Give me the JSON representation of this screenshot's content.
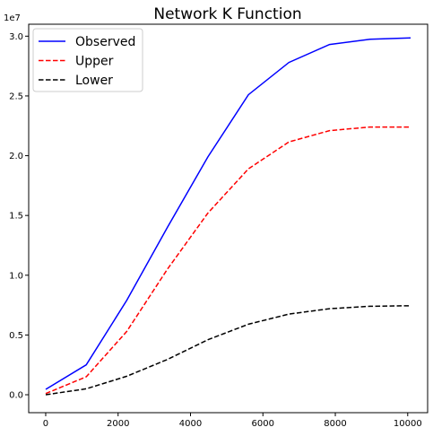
{
  "chart_data": {
    "type": "line",
    "title": "Network K Function",
    "xlabel": "",
    "ylabel": "",
    "y_offset_label": "1e7",
    "xlim": [
      -470,
      10550
    ],
    "ylim": [
      -1.5,
      31.0
    ],
    "y_scale_note": "values in units of 1e7",
    "x_ticks": [
      0,
      2000,
      4000,
      6000,
      8000,
      10000
    ],
    "x_tick_labels": [
      "0",
      "2000",
      "4000",
      "6000",
      "8000",
      "10000"
    ],
    "y_ticks": [
      0,
      5,
      10,
      15,
      20,
      25,
      30
    ],
    "y_tick_labels": [
      "0.0",
      "0.5",
      "1.0",
      "1.5",
      "2.0",
      "2.5",
      "3.0"
    ],
    "grid": false,
    "legend_position": "top-left",
    "x": [
      0,
      1120,
      2240,
      3360,
      4480,
      5600,
      6720,
      7840,
      8960,
      10080
    ],
    "series": [
      {
        "name": "Observed",
        "color": "#0000ff",
        "style": "solid",
        "values": [
          0.45,
          2.5,
          7.9,
          14.0,
          19.9,
          25.1,
          27.8,
          29.3,
          29.75,
          29.85
        ]
      },
      {
        "name": "Upper",
        "color": "#ff0000",
        "style": "dashed",
        "values": [
          0.1,
          1.5,
          5.3,
          10.5,
          15.2,
          18.9,
          21.15,
          22.1,
          22.4,
          22.4
        ]
      },
      {
        "name": "Lower",
        "color": "#000000",
        "style": "dashed",
        "values": [
          0.0,
          0.5,
          1.55,
          2.95,
          4.6,
          5.9,
          6.75,
          7.2,
          7.4,
          7.45
        ]
      }
    ]
  }
}
